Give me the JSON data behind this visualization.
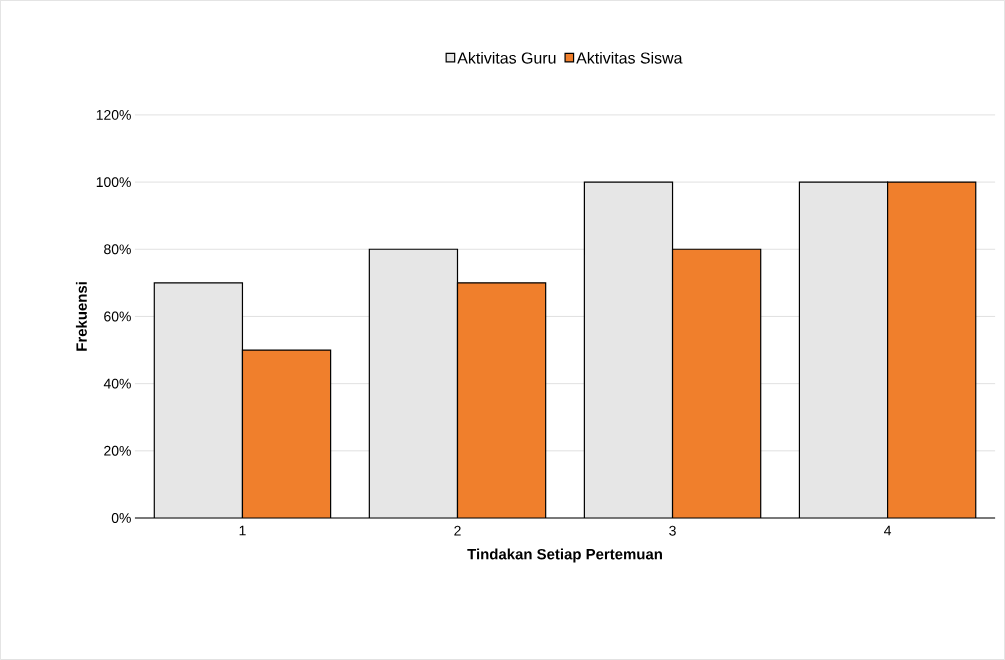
{
  "chart_data": {
    "type": "bar",
    "xlabel": "Tindakan Setiap Pertemuan",
    "ylabel": "Frekuensi",
    "categories": [
      "1",
      "2",
      "3",
      "4"
    ],
    "series": [
      {
        "name": "Aktivitas Guru",
        "color": "#e6e6e6",
        "values": [
          70,
          80,
          100,
          100
        ]
      },
      {
        "name": "Aktivitas Siswa",
        "color": "#f07f2c",
        "values": [
          50,
          70,
          80,
          100
        ]
      }
    ],
    "ylim": [
      0,
      120
    ],
    "yticks": [
      {
        "value": 0,
        "label": "0%"
      },
      {
        "value": 20,
        "label": "20%"
      },
      {
        "value": 40,
        "label": "40%"
      },
      {
        "value": 60,
        "label": "60%"
      },
      {
        "value": 80,
        "label": "80%"
      },
      {
        "value": 100,
        "label": "100%"
      },
      {
        "value": 120,
        "label": "120%"
      }
    ],
    "grid": "y",
    "legend": "top"
  }
}
